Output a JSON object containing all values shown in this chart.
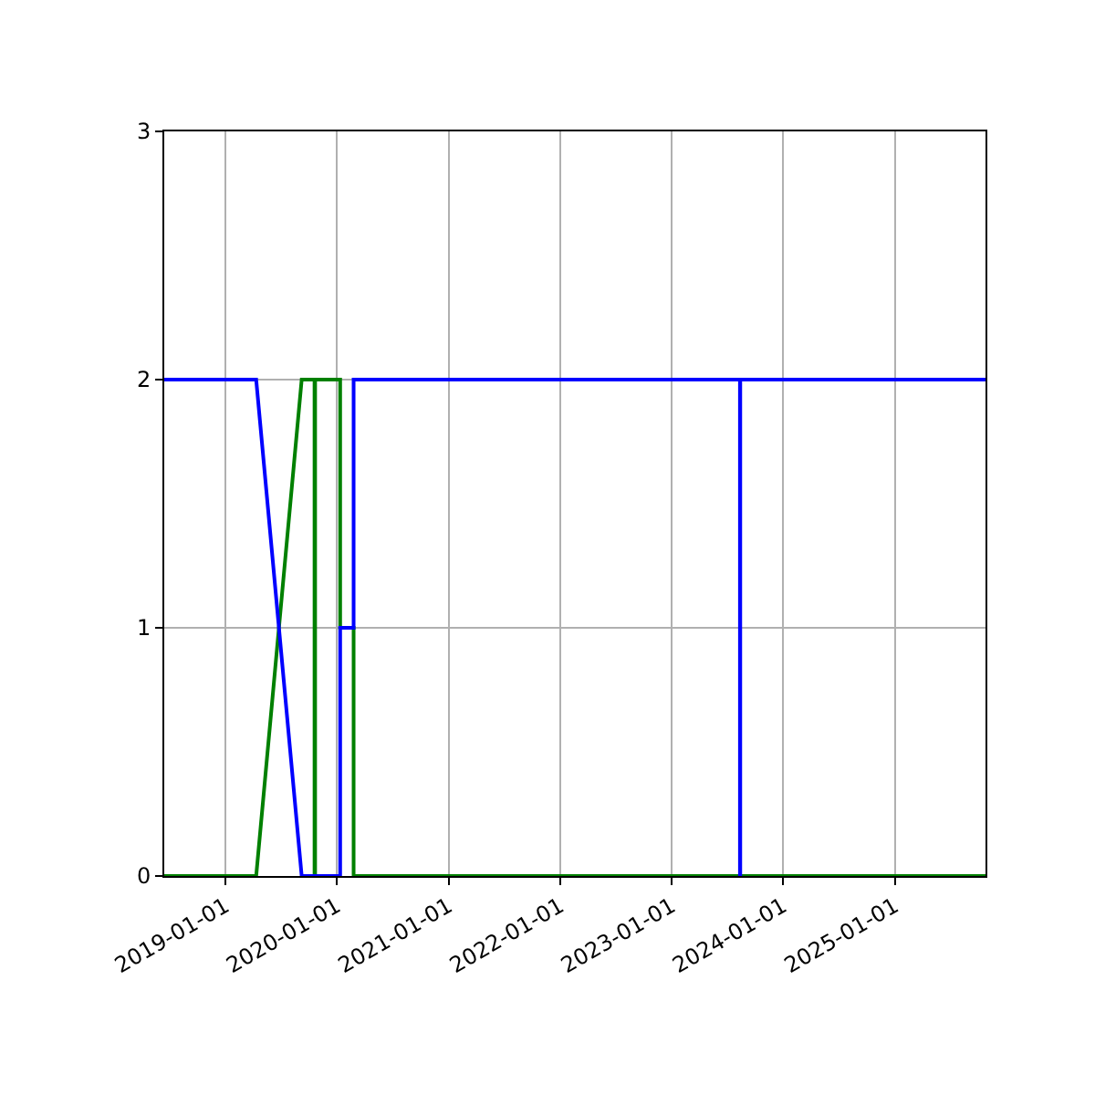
{
  "chart_data": {
    "type": "line",
    "xlim": [
      "2018-06-15",
      "2025-10-25"
    ],
    "xticks": [
      {
        "value": "2019-01-01",
        "label": "2019-01-01"
      },
      {
        "value": "2020-01-01",
        "label": "2020-01-01"
      },
      {
        "value": "2021-01-01",
        "label": "2021-01-01"
      },
      {
        "value": "2022-01-01",
        "label": "2022-01-01"
      },
      {
        "value": "2023-01-01",
        "label": "2023-01-01"
      },
      {
        "value": "2024-01-01",
        "label": "2024-01-01"
      },
      {
        "value": "2025-01-01",
        "label": "2025-01-01"
      }
    ],
    "ylim": [
      0,
      3
    ],
    "yticks": [
      0,
      1,
      2,
      3
    ],
    "grid": true,
    "legend": false,
    "series": [
      {
        "color": "#008000",
        "x": [
          "2018-06-15",
          "2019-04-12",
          "2019-09-08",
          "2019-10-20",
          "2019-10-20",
          "2019-10-22",
          "2019-10-22",
          "2020-01-12",
          "2020-01-12",
          "2020-02-25",
          "2020-02-25",
          "2025-10-25"
        ],
        "values": [
          0,
          0,
          2,
          2,
          0,
          0,
          2,
          2,
          1,
          1,
          0,
          0
        ]
      },
      {
        "color": "#0000ff",
        "x": [
          "2018-06-15",
          "2019-04-12",
          "2019-09-08",
          "2020-01-12",
          "2020-01-12",
          "2020-02-25",
          "2020-02-25",
          "2023-08-13",
          "2023-08-13",
          "2023-08-14",
          "2023-08-14",
          "2025-10-25"
        ],
        "values": [
          2,
          2,
          0,
          0,
          1,
          1,
          2,
          2,
          0,
          0,
          2,
          2
        ]
      }
    ]
  }
}
